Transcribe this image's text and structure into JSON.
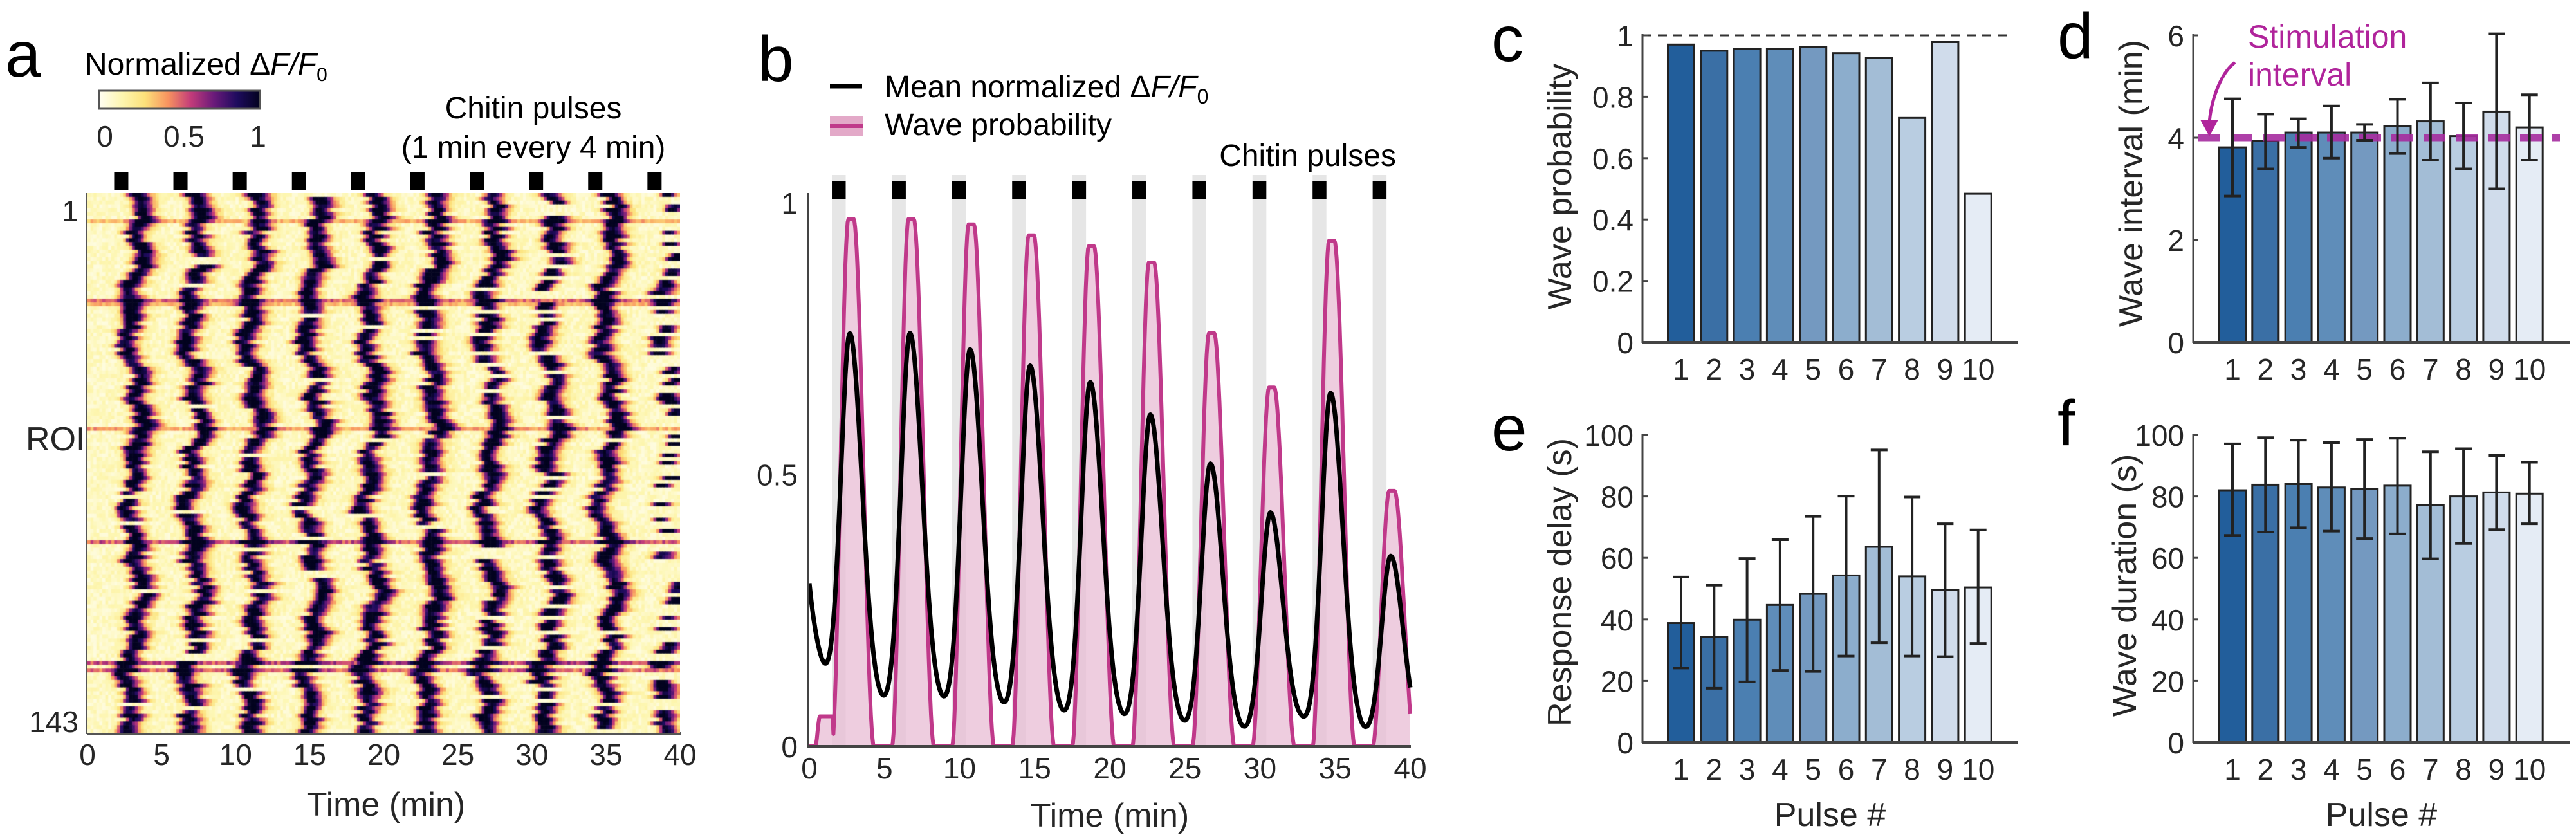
{
  "panel_labels": {
    "a": "a",
    "b": "b",
    "c": "c",
    "d": "d",
    "e": "e",
    "f": "f"
  },
  "colors": {
    "bars": [
      "#225e9b",
      "#3a6fa5",
      "#4b7fb1",
      "#5f8db9",
      "#7499c0",
      "#8cadcc",
      "#a3bdd6",
      "#b9cde1",
      "#d0dceb",
      "#e5ecf5"
    ],
    "mean_line": "#000000",
    "wave_line": "#c0398a",
    "wave_fill": "#e8bcd4",
    "pulse_band": "#e6e6e6",
    "stimulation": "#a62c9f",
    "colormap": [
      "#fffef2",
      "#fdf6b0",
      "#fce17a",
      "#f8935f",
      "#c23b7a",
      "#6a1a7a",
      "#1e0b5e",
      "#03031f"
    ]
  },
  "chart_data": [
    {
      "id": "a",
      "type": "heatmap",
      "colorbar": {
        "title_prefix": "Normalized Δ",
        "title_var": "F/F",
        "title_sub": "0",
        "ticks": [
          "0",
          "0.5",
          "1"
        ],
        "range": [
          0,
          1
        ]
      },
      "annotation": [
        "Chitin pulses",
        "(1 min every 4 min)"
      ],
      "ylabel": "ROI",
      "yticks": [
        "1",
        "143"
      ],
      "n_rois": 143,
      "xlabel": "Time (min)",
      "xticks": [
        "0",
        "5",
        "10",
        "15",
        "20",
        "25",
        "30",
        "35",
        "40"
      ],
      "xlim": [
        0,
        40
      ],
      "pulse_starts": [
        1.5,
        5.5,
        9.5,
        13.5,
        17.5,
        21.5,
        25.5,
        29.5,
        33.5,
        37.5
      ],
      "pulse_duration": 1
    },
    {
      "id": "b",
      "type": "line",
      "legend": {
        "mean_prefix": "Mean normalized Δ",
        "mean_var": "F/F",
        "mean_sub": "0",
        "wave": "Wave probability"
      },
      "annotation": "Chitin pulses",
      "xlabel": "Time (min)",
      "xticks": [
        "0",
        "5",
        "10",
        "15",
        "20",
        "25",
        "30",
        "35",
        "40"
      ],
      "yticks": [
        "0",
        "0.5",
        "1"
      ],
      "xlim": [
        0,
        40
      ],
      "ylim": [
        0,
        1
      ],
      "pulse_starts": [
        1.5,
        5.5,
        9.5,
        13.5,
        17.5,
        21.5,
        25.5,
        29.5,
        33.5,
        37.5
      ],
      "pulse_duration": 1,
      "series": [
        {
          "name": "Mean normalized ΔF/F0",
          "peak_times": [
            2.7,
            6.7,
            10.7,
            14.7,
            18.7,
            22.7,
            26.7,
            30.7,
            34.7,
            38.7
          ],
          "peaks": [
            0.75,
            0.76,
            0.73,
            0.7,
            0.67,
            0.61,
            0.52,
            0.43,
            0.65,
            0.35
          ],
          "troughs": [
            0.07,
            0.07,
            0.06,
            0.045,
            0.04,
            0.03,
            0.02,
            0.04,
            0.02,
            0.02
          ],
          "start_value": 0.3,
          "end_value": 0.17
        },
        {
          "name": "Wave probability",
          "peak_times": [
            2.7,
            6.7,
            10.7,
            14.7,
            18.7,
            22.7,
            26.7,
            30.7,
            34.7,
            38.7
          ],
          "peaks": [
            0.97,
            0.97,
            0.96,
            0.94,
            0.92,
            0.89,
            0.76,
            0.66,
            0.93,
            0.47
          ],
          "baseline_step": 0.055
        }
      ]
    },
    {
      "id": "c",
      "type": "bar",
      "categories": [
        "1",
        "2",
        "3",
        "4",
        "5",
        "6",
        "7",
        "8",
        "9",
        "10"
      ],
      "values": [
        0.97,
        0.95,
        0.955,
        0.955,
        0.963,
        0.942,
        0.927,
        0.731,
        0.978,
        0.484
      ],
      "ylabel": "Wave probability",
      "xlabel": "",
      "ylim": [
        0,
        1
      ],
      "yticks": [
        "0",
        "0.2",
        "0.4",
        "0.6",
        "0.8",
        "1"
      ],
      "reference_line": 1
    },
    {
      "id": "d",
      "type": "bar",
      "categories": [
        "1",
        "2",
        "3",
        "4",
        "5",
        "6",
        "7",
        "8",
        "9",
        "10"
      ],
      "values": [
        3.81,
        3.94,
        4.1,
        4.1,
        4.1,
        4.22,
        4.32,
        4.03,
        4.51,
        4.2
      ],
      "error_low": [
        2.86,
        3.39,
        3.81,
        3.6,
        3.95,
        3.69,
        3.56,
        3.39,
        3.0,
        3.56
      ],
      "error_high": [
        4.76,
        4.46,
        4.37,
        4.62,
        4.26,
        4.75,
        5.07,
        4.68,
        6.03,
        4.84
      ],
      "ylabel": "Wave interval (min)",
      "xlabel": "",
      "ylim": [
        0,
        6
      ],
      "yticks": [
        "0",
        "2",
        "4",
        "6"
      ],
      "reference_line": 4,
      "annotation": [
        "Stimulation",
        "interval"
      ]
    },
    {
      "id": "e",
      "type": "bar",
      "categories": [
        "1",
        "2",
        "3",
        "4",
        "5",
        "6",
        "7",
        "8",
        "9",
        "10"
      ],
      "values": [
        38.8,
        34.4,
        39.9,
        44.7,
        48.3,
        54.3,
        63.6,
        54.0,
        49.6,
        50.4
      ],
      "error_low": [
        24.2,
        17.6,
        19.7,
        23.4,
        23.1,
        28.1,
        32.4,
        28.1,
        27.9,
        32.2
      ],
      "error_high": [
        53.8,
        51.1,
        59.8,
        65.9,
        73.5,
        80.1,
        95.1,
        79.8,
        71.1,
        69.1
      ],
      "ylabel": "Response delay (s)",
      "xlabel": "Pulse #",
      "ylim": [
        0,
        100
      ],
      "yticks": [
        "0",
        "20",
        "40",
        "60",
        "80",
        "100"
      ]
    },
    {
      "id": "f",
      "type": "bar",
      "categories": [
        "1",
        "2",
        "3",
        "4",
        "5",
        "6",
        "7",
        "8",
        "9",
        "10"
      ],
      "values": [
        82.0,
        83.8,
        84.0,
        82.9,
        82.5,
        83.5,
        77.2,
        80.0,
        81.3,
        80.9
      ],
      "error_low": [
        67.3,
        68.4,
        69.8,
        68.7,
        66.3,
        67.8,
        59.7,
        64.7,
        69.2,
        71.1
      ],
      "error_high": [
        97.1,
        99.1,
        98.3,
        97.5,
        98.5,
        98.9,
        94.5,
        95.5,
        93.3,
        91.1
      ],
      "ylabel": "Wave duration (s)",
      "xlabel": "Pulse #",
      "ylim": [
        0,
        100
      ],
      "yticks": [
        "0",
        "20",
        "40",
        "60",
        "80",
        "100"
      ]
    }
  ]
}
